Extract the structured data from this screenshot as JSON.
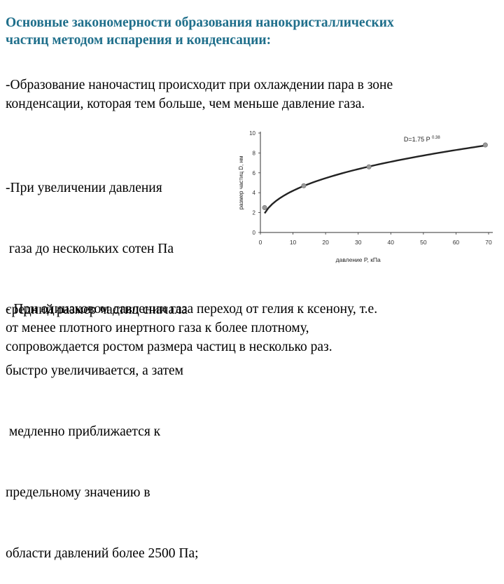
{
  "title": {
    "line1": "Основные закономерности образования нанокристаллических",
    "line2": "частиц методом испарения и конденсации:"
  },
  "paragraph1": {
    "line1": "-Образование наночастиц происходит при охлаждении пара в зоне",
    "line2": "конденсации, которая тем больше, чем меньше давление газа."
  },
  "paragraph2": {
    "line1": "-При увеличении давления",
    "line2": " газа до нескольких сотен Па",
    "line3": "средний размер частиц сначала",
    "line4": "быстро увеличивается, а затем",
    "line5": " медленно приближается к",
    "line6": "предельному значению в",
    "line7": "области давлений более 2500 Па;"
  },
  "paragraph3": {
    "line1": "- При одинаковом давлении газа переход от гелия к ксенону, т.е.",
    "line2": "от менее плотного инертного газа к более плотному,",
    "line3": "сопровождается ростом размера частиц в несколько раз."
  },
  "chart_data": {
    "type": "line",
    "xlabel": "давление P, кПа",
    "ylabel": "размер частиц D, нм",
    "annotation": {
      "base": "D=1.75 P",
      "exponent": "0.38"
    },
    "xlim": [
      0,
      70
    ],
    "ylim": [
      0,
      10
    ],
    "x_ticks": [
      "0",
      "10",
      "20",
      "30",
      "40",
      "50",
      "60",
      "70"
    ],
    "y_ticks": [
      "0",
      "2",
      "4",
      "6",
      "8",
      "10"
    ],
    "points": {
      "x": [
        1.3,
        13.3,
        33.3,
        69
      ],
      "y": [
        2.5,
        4.7,
        6.6,
        8.8
      ]
    },
    "curve": {
      "coefficient": 1.75,
      "exponent": 0.38
    },
    "grid": false,
    "colors": {
      "line": "#222222",
      "point": "#9a9a9a"
    }
  }
}
